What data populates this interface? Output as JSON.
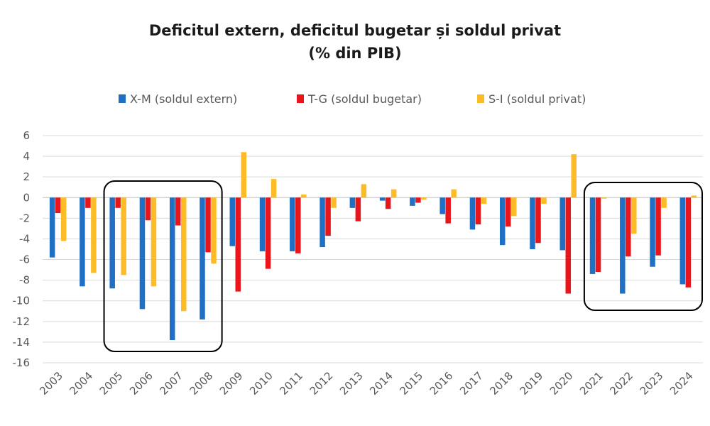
{
  "chart_data": {
    "type": "bar",
    "title": "Deficitul extern, deficitul bugetar și soldul privat",
    "subtitle": "(% din PIB)",
    "xlabel": "",
    "ylabel": "",
    "ylim": [
      -16,
      6
    ],
    "yticks": [
      6,
      4,
      2,
      0,
      -2,
      -4,
      -6,
      -8,
      -10,
      -12,
      -14,
      -16
    ],
    "grid": true,
    "legend_position": "top",
    "categories": [
      "2003",
      "2004",
      "2005",
      "2006",
      "2007",
      "2008",
      "2009",
      "2010",
      "2011",
      "2012",
      "2013",
      "2014",
      "2015",
      "2016",
      "2017",
      "2018",
      "2019",
      "2020",
      "2021",
      "2022",
      "2023",
      "2024"
    ],
    "series": [
      {
        "name": "X-M (soldul extern)",
        "color": "#1f6fc5",
        "values": [
          -5.8,
          -8.6,
          -8.8,
          -10.8,
          -13.8,
          -11.8,
          -4.7,
          -5.2,
          -5.2,
          -4.8,
          -1.0,
          -0.3,
          -0.8,
          -1.6,
          -3.1,
          -4.6,
          -5.0,
          -5.1,
          -7.4,
          -9.3,
          -6.7,
          -8.4
        ]
      },
      {
        "name": "T-G (soldul bugetar)",
        "color": "#e8151b",
        "values": [
          -1.5,
          -1.0,
          -1.0,
          -2.2,
          -2.7,
          -5.3,
          -9.1,
          -6.9,
          -5.4,
          -3.7,
          -2.3,
          -1.1,
          -0.5,
          -2.5,
          -2.6,
          -2.8,
          -4.4,
          -9.3,
          -7.2,
          -5.7,
          -5.6,
          -8.7
        ]
      },
      {
        "name": "S-I (soldul privat)",
        "color": "#fdbb27",
        "values": [
          -4.2,
          -7.3,
          -7.5,
          -8.6,
          -11.0,
          -6.4,
          4.4,
          1.8,
          0.3,
          -1.0,
          1.3,
          0.8,
          -0.2,
          0.8,
          -0.6,
          -1.8,
          -0.6,
          4.2,
          -0.1,
          -3.5,
          -1.0,
          0.2
        ]
      }
    ],
    "highlight_ranges": [
      [
        "2005",
        "2008"
      ],
      [
        "2021",
        "2024"
      ]
    ]
  }
}
